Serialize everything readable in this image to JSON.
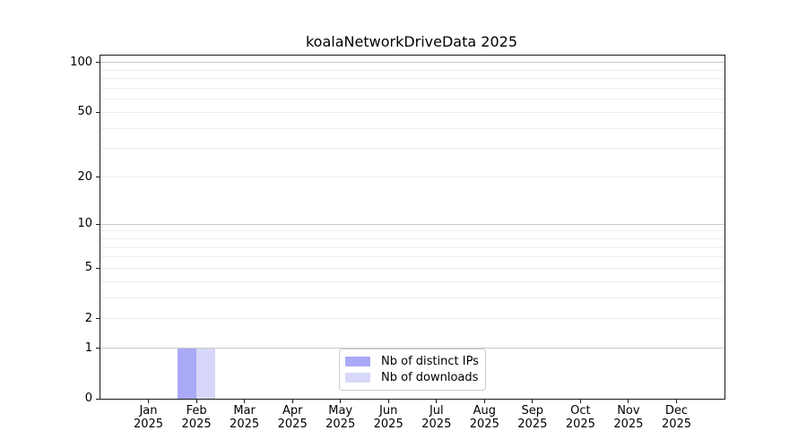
{
  "chart_data": {
    "type": "bar",
    "title": "koalaNetworkDriveData 2025",
    "x": {
      "categories": [
        "Jan",
        "Feb",
        "Mar",
        "Apr",
        "May",
        "Jun",
        "Jul",
        "Aug",
        "Sep",
        "Oct",
        "Nov",
        "Dec"
      ],
      "year_label": "2025"
    },
    "series": [
      {
        "name": "Nb of distinct IPs",
        "color": "#a9a9f7",
        "values": [
          0,
          1,
          0,
          0,
          0,
          0,
          0,
          0,
          0,
          0,
          0,
          0
        ]
      },
      {
        "name": "Nb of downloads",
        "color": "#d7d7fa",
        "values": [
          0,
          1,
          0,
          0,
          0,
          0,
          0,
          0,
          0,
          0,
          0,
          0
        ]
      }
    ],
    "yaxis": {
      "scale": "log1p",
      "ylim": [
        0,
        110.3
      ],
      "tick_values": [
        0,
        1,
        2,
        5,
        10,
        20,
        50,
        100
      ],
      "major_gridlines": [
        1,
        10,
        100
      ],
      "minor_gridlines": [
        2,
        3,
        4,
        5,
        6,
        7,
        8,
        9,
        20,
        30,
        40,
        50,
        60,
        70,
        80,
        90
      ]
    },
    "bar_group_width": 0.8,
    "legend": {
      "location": "lower center"
    },
    "grid": true
  }
}
